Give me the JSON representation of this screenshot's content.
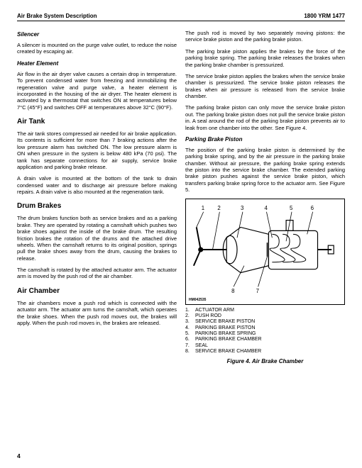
{
  "header": {
    "left": "Air Brake System Description",
    "right": "1800 YRM 1477"
  },
  "left": {
    "silencer_h": "Silencer",
    "silencer_p": "A silencer is mounted on the purge valve outlet, to reduce the noise created by escaping air.",
    "heater_h": "Heater Element",
    "heater_p": "Air flow in the air dryer valve causes a certain drop in temperature. To prevent condensed water from freezing and immobilizing the regeneration valve and purge valve, a heater element is incorporated in the housing of the air dryer. The heater element is activated by a thermostat that switches ON at temperatures below 7°C (45°F) and switches OFF at temperatures above 32°C (90°F).",
    "airtank_h": "Air Tank",
    "airtank_p1": "The air tank stores compressed air needed for air brake application. Its contents is sufficient for more than 7 braking actions after the low pressure alarm has switched ON. The low pressure alarm is ON when pressure in the system is below 480 kPa (70 psi). The tank has separate connections for air supply, service brake application and parking brake release.",
    "airtank_p2": "A drain valve is mounted at the bottom of the tank to drain condensed water and to discharge air pressure before making repairs. A drain valve is also mounted at the regeneration tank.",
    "drum_h": "Drum Brakes",
    "drum_p1": "The drum brakes function both as service brakes and as a parking brake. They are operated by rotating a camshaft which pushes two brake shoes against the inside of the brake drum. The resulting friction brakes the rotation of the drums and the attached drive wheels. When the camshaft returns to its original position, springs pull the brake shoes away from the drum, causing the brakes to release.",
    "drum_p2": "The camshaft is rotated by the attached actuator arm. The actuator arm is moved by the push rod of the air chamber.",
    "airch_h": "Air Chamber",
    "airch_p": "The air chambers move a push rod which is connected with the actuator arm. The actuator arm turns the camshaft, which operates the brake shoes. When the push rod moves out, the brakes will apply. When the push rod moves in, the brakes are released."
  },
  "right": {
    "p1": "The push rod is moved by two separately moving pistons: the service brake piston and the parking brake piston.",
    "p2": "The parking brake piston applies the brakes by the force of the parking brake spring. The parking brake releases the brakes when the parking brake chamber is pressurized.",
    "p3": "The service brake piston applies the brakes when the service brake chamber is pressurized. The service brake piston releases the brakes when air pressure is released from the service brake chamber.",
    "p4": "The parking brake piston can only move the service brake piston out. The parking brake piston does not pull the service brake piston in. A seal around the rod of the parking brake piston prevents air to leak from one chamber into the other. See Figure 4.",
    "pbp_h": "Parking Brake Piston",
    "pbp_p": "The position of the parking brake piston is determined by the parking brake spring, and by the air pressure in the parking brake chamber. Without air pressure, the parking brake spring extends the piston into the service brake chamber. The extended parking brake piston pushes against the service brake piston, which transfers parking brake spring force to the actuator arm. See Figure 5.",
    "fig_label": "HM042535",
    "legend": [
      {
        "n": "1.",
        "t": "ACTUATOR ARM"
      },
      {
        "n": "2.",
        "t": "PUSH ROD"
      },
      {
        "n": "3.",
        "t": "SERVICE BRAKE PISTON"
      },
      {
        "n": "4.",
        "t": "PARKING BRAKE PISTON"
      },
      {
        "n": "5.",
        "t": "PARKING BRAKE SPRING"
      },
      {
        "n": "6.",
        "t": "PARKING BRAKE CHAMBER"
      },
      {
        "n": "7.",
        "t": "SEAL"
      },
      {
        "n": "8.",
        "t": "SERVICE BRAKE CHAMBER"
      }
    ],
    "fig_cap": "Figure 4. Air Brake Chamber"
  },
  "page": "4",
  "diagram": {
    "stroke": "#000000",
    "fill": "#ffffff",
    "callouts": [
      "1",
      "2",
      "3",
      "4",
      "5",
      "6",
      "7",
      "8"
    ]
  }
}
